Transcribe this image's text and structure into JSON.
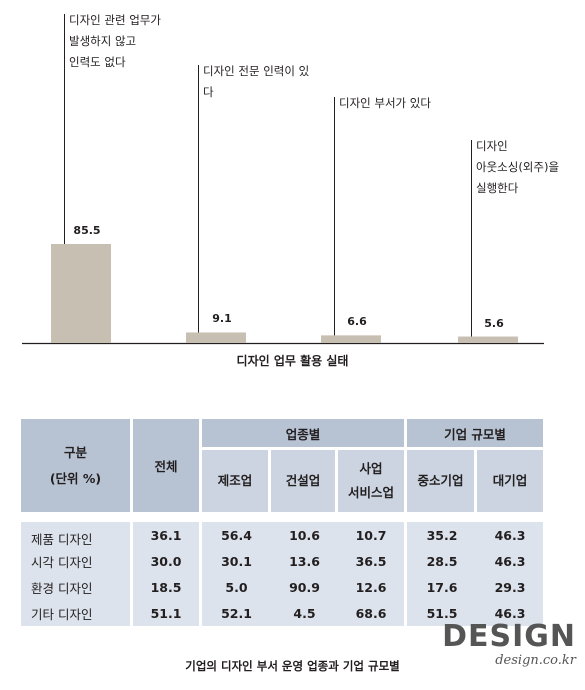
{
  "chart_data": {
    "type": "bar",
    "title": "디자인 업무 활용 실태",
    "categories": [
      "디자인 관련 업무가\n발생하지 않고\n인력도 없다",
      "디자인 전문 인력이 있\n다",
      "디자인 부서가 있다",
      "디자인\n아웃소싱(외주)을\n실행한다"
    ],
    "values": [
      85.5,
      9.1,
      6.6,
      5.6
    ],
    "value_labels": [
      "85.5",
      "9.1",
      "6.6",
      "5.6"
    ],
    "ylim": [
      0,
      100
    ],
    "bar_color": "#c8bfb3"
  },
  "table": {
    "header": {
      "group_label": "구분\n(단위 %)",
      "total_label": "전체",
      "industry_group": "업종별",
      "size_group": "기업 규모별",
      "columns": [
        "제조업",
        "건설업",
        "사업\n서비스업",
        "중소기업",
        "대기업"
      ]
    },
    "rows": [
      {
        "label": "제품 디자인",
        "values": [
          "36.1",
          "56.4",
          "10.6",
          "10.7",
          "35.2",
          "46.3"
        ]
      },
      {
        "label": "시각 디자인",
        "values": [
          "30.0",
          "30.1",
          "13.6",
          "36.5",
          "28.5",
          "46.3"
        ]
      },
      {
        "label": "환경 디자인",
        "values": [
          "18.5",
          "5.0",
          "90.9",
          "12.6",
          "17.6",
          "29.3"
        ]
      },
      {
        "label": "기타 디자인",
        "values": [
          "51.1",
          "52.1",
          "4.5",
          "68.6",
          "51.5",
          "46.3"
        ]
      }
    ],
    "caption": "기업의 디자인 부서 운영 업종과 기업 규모별"
  },
  "logo": {
    "main": "DESIGN",
    "sub": "design.co.kr"
  }
}
